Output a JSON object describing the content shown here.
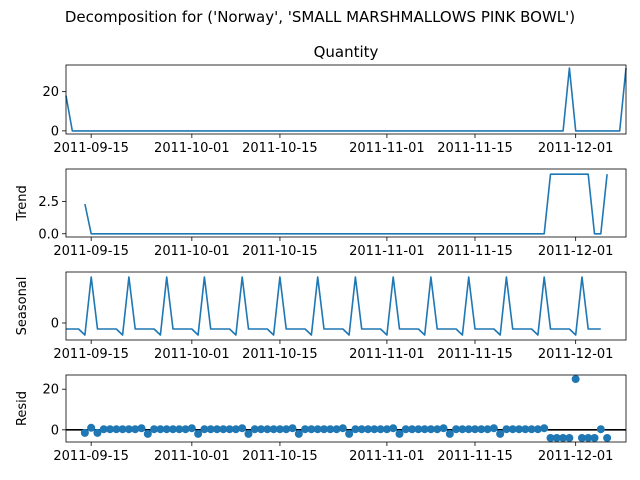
{
  "suptitle": "Decomposition for ('Norway', 'SMALL MARSHMALLOWS PINK BOWL')",
  "chart_data": [
    {
      "type": "line",
      "panel": "observed",
      "title": "Quantity",
      "ylabel": "",
      "x_start": "2011-09-11",
      "x_end": "2011-12-09",
      "xticks": [
        "2011-09-15",
        "2011-10-01",
        "2011-10-15",
        "2011-11-01",
        "2011-11-15",
        "2011-12-01"
      ],
      "yticks": [
        "0",
        "20"
      ],
      "ylim": [
        -1.6,
        33.6
      ],
      "x": [
        "2011-09-11",
        "2011-09-12",
        "2011-09-13",
        "2011-09-14",
        "2011-09-15",
        "2011-09-16",
        "2011-09-17",
        "2011-09-18",
        "2011-09-19",
        "2011-09-20",
        "2011-09-21",
        "2011-09-22",
        "2011-09-23",
        "2011-09-24",
        "2011-09-25",
        "2011-09-26",
        "2011-09-27",
        "2011-09-28",
        "2011-09-29",
        "2011-09-30",
        "2011-10-01",
        "2011-10-02",
        "2011-10-03",
        "2011-10-04",
        "2011-10-05",
        "2011-10-06",
        "2011-10-07",
        "2011-10-08",
        "2011-10-09",
        "2011-10-10",
        "2011-10-11",
        "2011-10-12",
        "2011-10-13",
        "2011-10-14",
        "2011-10-15",
        "2011-10-16",
        "2011-10-17",
        "2011-10-18",
        "2011-10-19",
        "2011-10-20",
        "2011-10-21",
        "2011-10-22",
        "2011-10-23",
        "2011-10-24",
        "2011-10-25",
        "2011-10-26",
        "2011-10-27",
        "2011-10-28",
        "2011-10-29",
        "2011-10-30",
        "2011-10-31",
        "2011-11-01",
        "2011-11-02",
        "2011-11-03",
        "2011-11-04",
        "2011-11-05",
        "2011-11-06",
        "2011-11-07",
        "2011-11-08",
        "2011-11-09",
        "2011-11-10",
        "2011-11-11",
        "2011-11-12",
        "2011-11-13",
        "2011-11-14",
        "2011-11-15",
        "2011-11-16",
        "2011-11-17",
        "2011-11-18",
        "2011-11-19",
        "2011-11-20",
        "2011-11-21",
        "2011-11-22",
        "2011-11-23",
        "2011-11-24",
        "2011-11-25",
        "2011-11-26",
        "2011-11-27",
        "2011-11-28",
        "2011-11-29",
        "2011-11-30",
        "2011-12-01",
        "2011-12-02",
        "2011-12-03",
        "2011-12-04",
        "2011-12-05",
        "2011-12-06",
        "2011-12-07",
        "2011-12-08",
        "2011-12-09"
      ],
      "values": [
        18,
        0,
        0,
        0,
        0,
        0,
        0,
        0,
        0,
        0,
        0,
        0,
        0,
        0,
        0,
        0,
        0,
        0,
        0,
        0,
        0,
        0,
        0,
        0,
        0,
        0,
        0,
        0,
        0,
        0,
        0,
        0,
        0,
        0,
        0,
        0,
        0,
        0,
        0,
        0,
        0,
        0,
        0,
        0,
        0,
        0,
        0,
        0,
        0,
        0,
        0,
        0,
        0,
        0,
        0,
        0,
        0,
        0,
        0,
        0,
        0,
        0,
        0,
        0,
        0,
        0,
        0,
        0,
        0,
        0,
        0,
        0,
        0,
        0,
        0,
        0,
        0,
        0,
        0,
        0,
        32,
        0,
        0,
        0,
        0,
        0,
        0,
        0,
        0,
        32
      ]
    },
    {
      "type": "line",
      "panel": "trend",
      "title": "",
      "ylabel": "Trend",
      "yticks": [
        "0.0",
        "2.5"
      ],
      "ylim": [
        -0.25,
        5.0
      ],
      "x_start": "2011-09-14",
      "x_end": "2011-12-09",
      "values": [
        2.3,
        0,
        0,
        0,
        0,
        0,
        0,
        0,
        0,
        0,
        0,
        0,
        0,
        0,
        0,
        0,
        0,
        0,
        0,
        0,
        0,
        0,
        0,
        0,
        0,
        0,
        0,
        0,
        0,
        0,
        0,
        0,
        0,
        0,
        0,
        0,
        0,
        0,
        0,
        0,
        0,
        0,
        0,
        0,
        0,
        0,
        0,
        0,
        0,
        0,
        0,
        0,
        0,
        0,
        0,
        0,
        0,
        0,
        0,
        0,
        0,
        0,
        0,
        0,
        0,
        0,
        0,
        0,
        0,
        0,
        0,
        0,
        0,
        0,
        4.6,
        4.6,
        4.6,
        4.6,
        4.6,
        4.6,
        4.6,
        0,
        0,
        4.6
      ]
    },
    {
      "type": "line",
      "panel": "seasonal",
      "title": "",
      "ylabel": "Seasonal",
      "yticks": [
        "0"
      ],
      "ylim": [
        -0.85,
        2.55
      ],
      "x_start": "2011-09-11",
      "x_end": "2011-12-09",
      "values": [
        -0.3,
        -0.3,
        -0.3,
        -0.6,
        2.3,
        -0.3,
        -0.3,
        -0.3,
        -0.3,
        -0.6,
        2.3,
        -0.3,
        -0.3,
        -0.3,
        -0.3,
        -0.6,
        2.3,
        -0.3,
        -0.3,
        -0.3,
        -0.3,
        -0.6,
        2.3,
        -0.3,
        -0.3,
        -0.3,
        -0.3,
        -0.6,
        2.3,
        -0.3,
        -0.3,
        -0.3,
        -0.3,
        -0.6,
        2.3,
        -0.3,
        -0.3,
        -0.3,
        -0.3,
        -0.6,
        2.3,
        -0.3,
        -0.3,
        -0.3,
        -0.3,
        -0.6,
        2.3,
        -0.3,
        -0.3,
        -0.3,
        -0.3,
        -0.6,
        2.3,
        -0.3,
        -0.3,
        -0.3,
        -0.3,
        -0.6,
        2.3,
        -0.3,
        -0.3,
        -0.3,
        -0.3,
        -0.6,
        2.3,
        -0.3,
        -0.3,
        -0.3,
        -0.3,
        -0.6,
        2.3,
        -0.3,
        -0.3,
        -0.3,
        -0.3,
        -0.6,
        2.3,
        -0.3,
        -0.3,
        -0.3,
        -0.3,
        -0.6,
        2.3,
        -0.3,
        -0.3,
        -0.3
      ]
    },
    {
      "type": "scatter",
      "panel": "resid",
      "title": "",
      "ylabel": "Resid",
      "yticks": [
        "0",
        "20"
      ],
      "ylim": [
        -6,
        27
      ],
      "x_start": "2011-09-14",
      "x_end": "2011-12-06",
      "values": [
        -1.5,
        1,
        -1.5,
        0.3,
        0.3,
        0.3,
        0.3,
        0.3,
        0.3,
        0.8,
        -2,
        0.3,
        0.3,
        0.3,
        0.3,
        0.3,
        0.3,
        0.8,
        -2,
        0.3,
        0.3,
        0.3,
        0.3,
        0.3,
        0.3,
        0.8,
        -2,
        0.3,
        0.3,
        0.3,
        0.3,
        0.3,
        0.3,
        0.8,
        -2,
        0.3,
        0.3,
        0.3,
        0.3,
        0.3,
        0.3,
        0.8,
        -2,
        0.3,
        0.3,
        0.3,
        0.3,
        0.3,
        0.3,
        0.8,
        -2,
        0.3,
        0.3,
        0.3,
        0.3,
        0.3,
        0.3,
        0.8,
        -2,
        0.3,
        0.3,
        0.3,
        0.3,
        0.3,
        0.3,
        0.8,
        -2,
        0.3,
        0.3,
        0.3,
        0.3,
        0.3,
        0.3,
        0.8,
        -2,
        0.3,
        0.3,
        0.3,
        0.3,
        0.3,
        0.3,
        0.8,
        -2,
        0.3
      ]
    }
  ],
  "resid_overrides": {
    "note_dates": [
      "2011-11-27",
      "2011-11-28",
      "2011-11-29",
      "2011-11-30",
      "2011-12-01",
      "2011-12-02",
      "2011-12-03",
      "2011-12-04",
      "2011-12-05",
      "2011-12-06"
    ],
    "values": [
      -4,
      -4,
      -4,
      -4,
      25,
      -4,
      -4,
      -4,
      0.3,
      -4
    ]
  },
  "colors": {
    "series": "#1f77b4",
    "axis": "#000000"
  }
}
